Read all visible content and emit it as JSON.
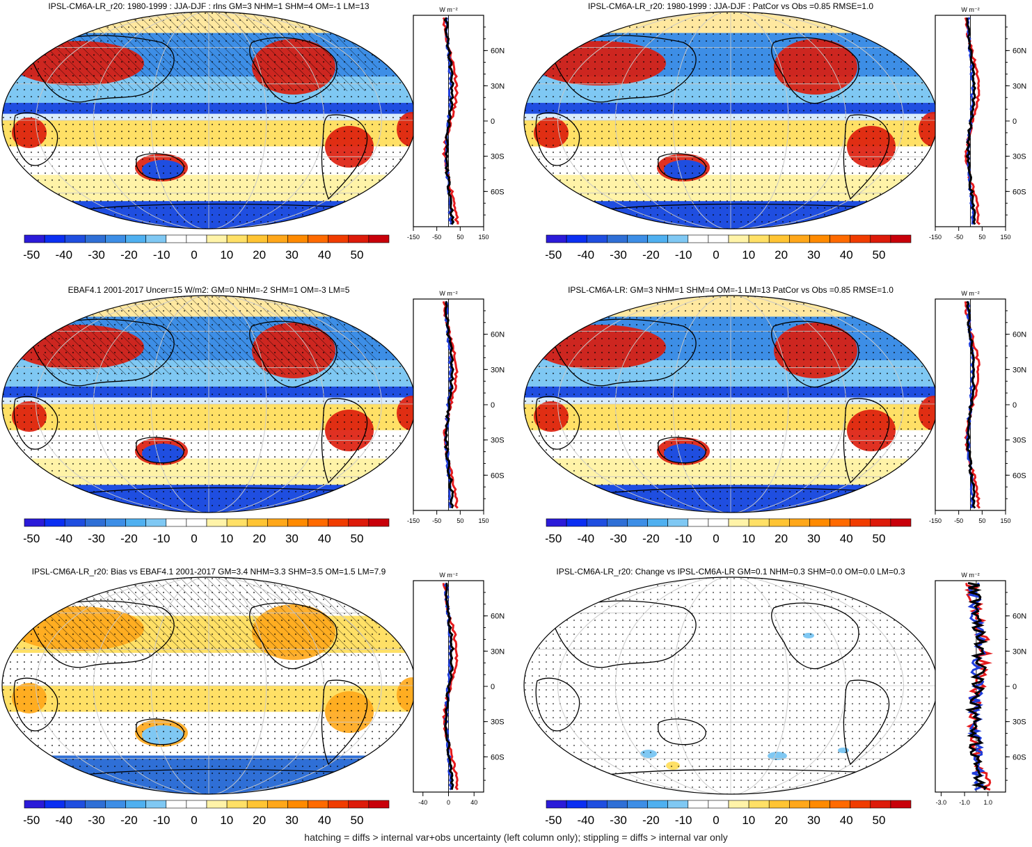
{
  "colorbar": {
    "labels": [
      "-50",
      "-40",
      "-30",
      "-20",
      "-10",
      "0",
      "10",
      "20",
      "30",
      "40",
      "50"
    ],
    "colors": [
      "#2b1bd9",
      "#0b2ff2",
      "#1f4ee0",
      "#2f6fd6",
      "#3d8ee6",
      "#4fb0f0",
      "#7fc8f3",
      "#ffffff",
      "#ffffff",
      "#fff3a8",
      "#ffe066",
      "#ffc433",
      "#ffa71a",
      "#ff8a00",
      "#ff6a00",
      "#f03c00",
      "#dd1b0a",
      "#c8000a"
    ]
  },
  "panels": [
    {
      "title": "IPSL-CM6A-LR_r20: 1980-1999 : JJA-DJF : rlns GM=3 NHM=1 SHM=4 OM=-1 LM=13",
      "profile_xticks": [
        "-150",
        "-50",
        "50",
        "150"
      ],
      "profile_xrange": [
        -150,
        150
      ],
      "hatch": true
    },
    {
      "title": "IPSL-CM6A-LR_r20: 1980-1999 : JJA-DJF : PatCor vs Obs =0.85 RMSE=1.0",
      "profile_xticks": [
        "-150",
        "-50",
        "50",
        "150"
      ],
      "profile_xrange": [
        -150,
        150
      ],
      "hatch": false
    },
    {
      "title": "EBAF4.1 2001-2017 Uncer=15 W/m2: GM=0 NHM=-2 SHM=1 OM=-3 LM=5",
      "profile_xticks": [
        "-150",
        "-50",
        "50",
        "150"
      ],
      "profile_xrange": [
        -150,
        150
      ],
      "hatch": true
    },
    {
      "title": "IPSL-CM6A-LR: GM=3 NHM=1 SHM=4 OM=-1 LM=13 PatCor vs Obs =0.85 RMSE=1.0",
      "profile_xticks": [
        "-150",
        "-50",
        "50",
        "150"
      ],
      "profile_xrange": [
        -150,
        150
      ],
      "hatch": false
    },
    {
      "title": "IPSL-CM6A-LR_r20: Bias vs EBAF4.1 2001-2017 GM=3.4 NHM=3.3 SHM=3.5 OM=1.5 LM=7.9",
      "profile_xticks": [
        "-40",
        "0",
        "40"
      ],
      "profile_xrange": [
        -55,
        55
      ],
      "hatch": true
    },
    {
      "title": "IPSL-CM6A-LR_r20: Change vs IPSL-CM6A-LR GM=0.1 NHM=0.3 SHM=0.0 OM=0.0 LM=0.3",
      "profile_xticks": [
        "-3.0",
        "-1.0",
        "1.0"
      ],
      "profile_xrange": [
        -3.5,
        2.5
      ],
      "hatch": false
    }
  ],
  "profile": {
    "unit": "W m⁻²",
    "lat_labels": [
      "60N",
      "30N",
      "0",
      "30S",
      "60S"
    ]
  },
  "footnote": "hatching = diffs > internal var+obs uncertainty (left column only); stippling = diffs > internal var only"
}
